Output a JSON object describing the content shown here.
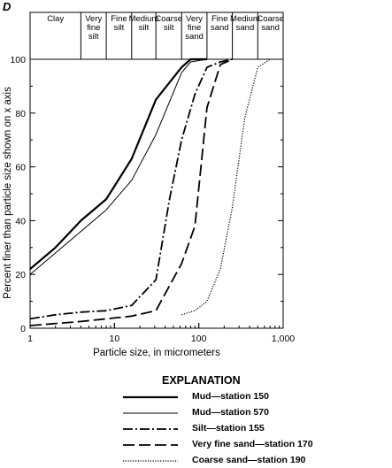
{
  "panel_letter": "D",
  "explanation_title": "EXPLANATION",
  "chart_data": {
    "type": "line",
    "xlabel": "Particle size, in micrometers",
    "ylabel": "Percent finer than particle size shown on x axis",
    "xscale": "log",
    "xlim": [
      1,
      1000
    ],
    "ylim": [
      0,
      100
    ],
    "x_ticks": [
      1,
      10,
      100,
      1000
    ],
    "x_tick_labels": [
      "1",
      "10",
      "100",
      "1,000"
    ],
    "y_ticks": [
      0,
      20,
      40,
      60,
      80,
      100
    ],
    "y_tick_labels": [
      "0",
      "20",
      "40",
      "60",
      "80",
      "100"
    ],
    "grid": false,
    "legend_position": "bottom",
    "size_classes": [
      {
        "lines": [
          "Clay"
        ],
        "from": 1,
        "to": 4
      },
      {
        "lines": [
          "Very",
          "fine",
          "silt"
        ],
        "from": 4,
        "to": 8
      },
      {
        "lines": [
          "Fine",
          "silt"
        ],
        "from": 8,
        "to": 16
      },
      {
        "lines": [
          "Medium",
          "silt"
        ],
        "from": 16,
        "to": 31
      },
      {
        "lines": [
          "Coarse",
          "silt"
        ],
        "from": 31,
        "to": 62.5
      },
      {
        "lines": [
          "Very",
          "fine",
          "sand"
        ],
        "from": 62.5,
        "to": 125
      },
      {
        "lines": [
          "Fine",
          "sand"
        ],
        "from": 125,
        "to": 250
      },
      {
        "lines": [
          "Medium",
          "sand"
        ],
        "from": 250,
        "to": 500
      },
      {
        "lines": [
          "Coarse",
          "sand"
        ],
        "from": 500,
        "to": 1000
      }
    ],
    "series": [
      {
        "name": "Mud—station 150",
        "style": "thick-solid",
        "x": [
          1,
          2,
          4,
          8,
          16,
          31,
          62.5,
          80,
          125
        ],
        "y": [
          22,
          30,
          40,
          48,
          63,
          85,
          97,
          100,
          100
        ]
      },
      {
        "name": "Mud—station 570",
        "style": "thin-solid",
        "x": [
          1,
          2,
          4,
          8,
          16,
          31,
          62.5,
          80,
          125
        ],
        "y": [
          20,
          28,
          36,
          44,
          55,
          72,
          95,
          99,
          100
        ]
      },
      {
        "name": "Silt—station 155",
        "style": "dash-dot",
        "x": [
          1,
          2,
          4,
          8,
          16,
          31,
          45,
          62.5,
          90,
          125,
          180,
          250
        ],
        "y": [
          3.5,
          5,
          6,
          6.5,
          8.5,
          18,
          48,
          70,
          87,
          97,
          99,
          100
        ]
      },
      {
        "name": "Very fine sand—station 170",
        "style": "long-dash",
        "x": [
          1,
          4,
          8,
          16,
          31,
          62.5,
          90,
          125,
          180,
          250
        ],
        "y": [
          1,
          2.5,
          3.5,
          4.5,
          6.5,
          24,
          38,
          82,
          98,
          100
        ]
      },
      {
        "name": "Coarse sand—station 190",
        "style": "dotted",
        "x": [
          62.5,
          90,
          125,
          180,
          250,
          350,
          500,
          700
        ],
        "y": [
          5,
          6.5,
          10,
          22,
          45,
          78,
          97,
          100
        ]
      }
    ]
  }
}
